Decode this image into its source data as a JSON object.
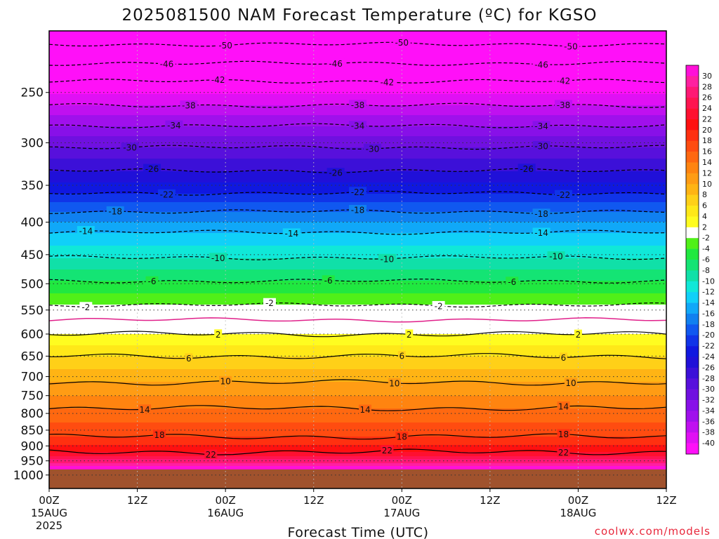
{
  "chart_data": {
    "type": "heatmap",
    "title": "2025081500 NAM Forecast Temperature (ºC) for KGSO",
    "xlabel": "Forecast Time (UTC)",
    "ylabel": "",
    "credit": "coolwx.com/models",
    "y_axis": {
      "scale": "log-pressure",
      "range_hPa": [
        1050,
        200
      ],
      "ticks": [
        250,
        300,
        350,
        400,
        450,
        500,
        550,
        600,
        650,
        700,
        750,
        800,
        850,
        900,
        950,
        1000
      ]
    },
    "x_axis": {
      "range_hours": [
        0,
        84
      ],
      "ticks": [
        {
          "hour": 0,
          "line1": "00Z",
          "line2": "15AUG",
          "line3": "2025"
        },
        {
          "hour": 12,
          "line1": "12Z",
          "line2": "",
          "line3": ""
        },
        {
          "hour": 24,
          "line1": "00Z",
          "line2": "16AUG",
          "line3": ""
        },
        {
          "hour": 36,
          "line1": "12Z",
          "line2": "",
          "line3": ""
        },
        {
          "hour": 48,
          "line1": "00Z",
          "line2": "17AUG",
          "line3": ""
        },
        {
          "hour": 60,
          "line1": "12Z",
          "line2": "",
          "line3": ""
        },
        {
          "hour": 72,
          "line1": "00Z",
          "line2": "18AUG",
          "line3": ""
        },
        {
          "hour": 84,
          "line1": "12Z",
          "line2": "",
          "line3": ""
        }
      ]
    },
    "grid": true,
    "ground_level_hPa": 980,
    "colorbar": {
      "position": "right",
      "ticks": [
        "30",
        "28",
        "26",
        "24",
        "22",
        "20",
        "18",
        "16",
        "14",
        "12",
        "10",
        "8",
        "6",
        "4",
        "2",
        "-2",
        "-4",
        "-6",
        "-8",
        "-10",
        "-12",
        "-14",
        "-16",
        "-18",
        "-20",
        "-22",
        "-24",
        "-26",
        "-28",
        "-30",
        "-32",
        "-34",
        "-36",
        "-38",
        "-40"
      ],
      "colors": [
        "#ff10d8",
        "#ff20a0",
        "#ff1874",
        "#ff1450",
        "#ff1030",
        "#ff1010",
        "#ff3010",
        "#ff4c10",
        "#ff6810",
        "#ff8410",
        "#ff9c14",
        "#ffb414",
        "#ffd018",
        "#ffe818",
        "#fffc20",
        "#ffffff",
        "#50f018",
        "#20e840",
        "#14e474",
        "#10e0a8",
        "#10e8d8",
        "#10d0f8",
        "#10a8f8",
        "#1080f0",
        "#1058f0",
        "#1034e8",
        "#1018e0",
        "#2010d8",
        "#3c10d8",
        "#5810dc",
        "#7010e0",
        "#8810e8",
        "#a010ec",
        "#c010f0",
        "#e010f4",
        "#ff10f8"
      ]
    },
    "isotherms": [
      {
        "value": -50,
        "level_hPa": 210,
        "labels": [
          {
            "hour": 24,
            "text": "-50"
          },
          {
            "hour": 48,
            "text": "-50"
          },
          {
            "hour": 71,
            "text": "-50"
          }
        ]
      },
      {
        "value": -46,
        "level_hPa": 225,
        "labels": [
          {
            "hour": 16,
            "text": "-46"
          },
          {
            "hour": 39,
            "text": "-46"
          },
          {
            "hour": 67,
            "text": "-46"
          }
        ]
      },
      {
        "value": -42,
        "level_hPa": 240,
        "labels": [
          {
            "hour": 23,
            "text": "-42"
          },
          {
            "hour": 46,
            "text": "-42"
          },
          {
            "hour": 70,
            "text": "-42"
          }
        ]
      },
      {
        "value": -38,
        "level_hPa": 262,
        "labels": [
          {
            "hour": 19,
            "text": "-38"
          },
          {
            "hour": 42,
            "text": "-38"
          },
          {
            "hour": 70,
            "text": "-38"
          }
        ]
      },
      {
        "value": -34,
        "level_hPa": 282,
        "labels": [
          {
            "hour": 17,
            "text": "-34"
          },
          {
            "hour": 42,
            "text": "-34"
          },
          {
            "hour": 67,
            "text": "-34"
          }
        ]
      },
      {
        "value": -30,
        "level_hPa": 305,
        "labels": [
          {
            "hour": 11,
            "text": "-30"
          },
          {
            "hour": 44,
            "text": "-30"
          },
          {
            "hour": 67,
            "text": "-30"
          }
        ]
      },
      {
        "value": -26,
        "level_hPa": 332,
        "labels": [
          {
            "hour": 14,
            "text": "-26"
          },
          {
            "hour": 39,
            "text": "-26"
          },
          {
            "hour": 65,
            "text": "-26"
          }
        ]
      },
      {
        "value": -22,
        "level_hPa": 360,
        "labels": [
          {
            "hour": 16,
            "text": "-22"
          },
          {
            "hour": 42,
            "text": "-22"
          },
          {
            "hour": 70,
            "text": "-22"
          }
        ]
      },
      {
        "value": -18,
        "level_hPa": 385,
        "labels": [
          {
            "hour": 9,
            "text": "-18"
          },
          {
            "hour": 42,
            "text": "-18"
          },
          {
            "hour": 67,
            "text": "-18"
          }
        ]
      },
      {
        "value": -14,
        "level_hPa": 415,
        "labels": [
          {
            "hour": 5,
            "text": "-14"
          },
          {
            "hour": 33,
            "text": "-14"
          },
          {
            "hour": 67,
            "text": "-14"
          }
        ]
      },
      {
        "value": -10,
        "level_hPa": 455,
        "labels": [
          {
            "hour": 23,
            "text": "-10"
          },
          {
            "hour": 46,
            "text": "-10"
          },
          {
            "hour": 69,
            "text": "-10"
          }
        ]
      },
      {
        "value": -6,
        "level_hPa": 495,
        "labels": [
          {
            "hour": 14,
            "text": "-6"
          },
          {
            "hour": 38,
            "text": "-6"
          },
          {
            "hour": 63,
            "text": "-6"
          }
        ]
      },
      {
        "value": -2,
        "level_hPa": 540,
        "labels": [
          {
            "hour": 5,
            "text": "-2"
          },
          {
            "hour": 30,
            "text": "-2"
          },
          {
            "hour": 53,
            "text": "-2"
          }
        ]
      },
      {
        "value": 2,
        "level_hPa": 600,
        "labels": [
          {
            "hour": 23,
            "text": "2"
          },
          {
            "hour": 49,
            "text": "2"
          },
          {
            "hour": 72,
            "text": "2"
          }
        ]
      },
      {
        "value": 6,
        "level_hPa": 650,
        "labels": [
          {
            "hour": 19,
            "text": "6"
          },
          {
            "hour": 48,
            "text": "6"
          },
          {
            "hour": 70,
            "text": "6"
          }
        ]
      },
      {
        "value": 10,
        "level_hPa": 715,
        "labels": [
          {
            "hour": 24,
            "text": "10"
          },
          {
            "hour": 47,
            "text": "10"
          },
          {
            "hour": 71,
            "text": "10"
          }
        ]
      },
      {
        "value": 14,
        "level_hPa": 785,
        "labels": [
          {
            "hour": 13,
            "text": "14"
          },
          {
            "hour": 43,
            "text": "14"
          },
          {
            "hour": 70,
            "text": "14"
          }
        ]
      },
      {
        "value": 18,
        "level_hPa": 870,
        "labels": [
          {
            "hour": 15,
            "text": "18"
          },
          {
            "hour": 48,
            "text": "18"
          },
          {
            "hour": 70,
            "text": "18"
          }
        ]
      },
      {
        "value": 22,
        "level_hPa": 920,
        "labels": [
          {
            "hour": 22,
            "text": "22"
          },
          {
            "hour": 46,
            "text": "22"
          },
          {
            "hour": 70,
            "text": "22"
          }
        ]
      }
    ]
  }
}
